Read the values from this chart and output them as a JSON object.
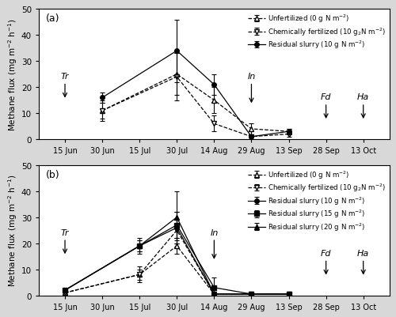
{
  "panel_a": {
    "x_labels": [
      "15 Jun",
      "30 Jun",
      "15 Jul",
      "30 Jul",
      "14 Aug",
      "29 Aug",
      "13 Sep",
      "28 Sep",
      "13 Oct"
    ],
    "x_ticks": [
      0,
      1,
      2,
      3,
      4,
      5,
      6,
      7,
      8
    ],
    "series": [
      {
        "label": "Unfertilized (0 g N m$^{-2}$)",
        "x": [
          1,
          3,
          4,
          5,
          6
        ],
        "y": [
          11,
          25,
          15,
          4,
          3
        ],
        "yerr": [
          3,
          8,
          5,
          2,
          1
        ],
        "marker": "^",
        "linestyle": "--",
        "fillstyle": "none",
        "zorder": 2
      },
      {
        "label": "Chemically fertilized (10 g$_2$N m$^{-2}$)",
        "x": [
          1,
          3,
          4,
          5,
          6
        ],
        "y": [
          11,
          24,
          6,
          1,
          2
        ],
        "yerr": [
          4,
          9,
          3,
          1,
          1
        ],
        "marker": "v",
        "linestyle": "--",
        "fillstyle": "none",
        "zorder": 2
      },
      {
        "label": "Residual slurry (10 g N m$^{-2}$)",
        "x": [
          1,
          3,
          4,
          5,
          6
        ],
        "y": [
          16,
          34,
          21,
          1,
          3
        ],
        "yerr": [
          2,
          12,
          4,
          1,
          1
        ],
        "marker": "o",
        "linestyle": "-",
        "fillstyle": "full",
        "zorder": 3
      }
    ],
    "arrows": [
      {
        "label": "Tr",
        "x": 0.0,
        "ytop": 22,
        "ybot": 15
      },
      {
        "label": "In",
        "x": 5.0,
        "ytop": 22,
        "ybot": 13
      },
      {
        "label": "Fd",
        "x": 7.0,
        "ytop": 14,
        "ybot": 7
      },
      {
        "label": "Ha",
        "x": 8.0,
        "ytop": 14,
        "ybot": 7
      }
    ],
    "ylim": [
      0,
      50
    ],
    "yticks": [
      0,
      10,
      20,
      30,
      40,
      50
    ],
    "panel_label": "(a)"
  },
  "panel_b": {
    "x_labels": [
      "15 Jun",
      "30 Jun",
      "15 Jul",
      "30 Jul",
      "14 Aug",
      "29 Aug",
      "13 Sep",
      "28 Sep",
      "13 Oct"
    ],
    "x_ticks": [
      0,
      1,
      2,
      3,
      4,
      5,
      6,
      7,
      8
    ],
    "series": [
      {
        "label": "Unfertilized (0 g N m$^{-2}$)",
        "x": [
          0,
          2,
          3,
          4,
          5,
          6
        ],
        "y": [
          1,
          8,
          19,
          0.5,
          0.5,
          0.5
        ],
        "yerr": [
          0.5,
          2,
          3,
          0.3,
          0.3,
          0.3
        ],
        "marker": "^",
        "linestyle": "--",
        "fillstyle": "none",
        "zorder": 2
      },
      {
        "label": "Chemically fertilized (10 g$_2$N m$^{-2}$)",
        "x": [
          0,
          2,
          3,
          4,
          5,
          6
        ],
        "y": [
          1,
          8,
          25,
          0.5,
          0.5,
          0.5
        ],
        "yerr": [
          0.5,
          3,
          4,
          0.3,
          0.3,
          0.3
        ],
        "marker": "v",
        "linestyle": "--",
        "fillstyle": "none",
        "zorder": 2
      },
      {
        "label": "Residual slurry (10 g N m$^{-2}$)",
        "x": [
          0,
          2,
          3,
          4,
          5,
          6
        ],
        "y": [
          2,
          19,
          26,
          0.5,
          0.5,
          0.5
        ],
        "yerr": [
          0.5,
          3,
          6,
          0.3,
          0.3,
          0.3
        ],
        "marker": "o",
        "linestyle": "-",
        "fillstyle": "full",
        "zorder": 3
      },
      {
        "label": "Residual slurry (15 g N m$^{-2}$)",
        "x": [
          0,
          2,
          3,
          4,
          5,
          6
        ],
        "y": [
          2,
          19,
          27,
          3,
          0.5,
          0.5
        ],
        "yerr": [
          0.5,
          2,
          5,
          4,
          0.3,
          0.3
        ],
        "marker": "s",
        "linestyle": "-",
        "fillstyle": "full",
        "zorder": 3
      },
      {
        "label": "Residual slurry (20 g N m$^{-2}$)",
        "x": [
          0,
          2,
          3,
          4,
          5,
          6
        ],
        "y": [
          2,
          19,
          30,
          0.5,
          0.5,
          0.5
        ],
        "yerr": [
          0.5,
          2,
          10,
          0.3,
          0.3,
          0.3
        ],
        "marker": "^",
        "linestyle": "-",
        "fillstyle": "full",
        "zorder": 3
      }
    ],
    "arrows": [
      {
        "label": "Tr",
        "x": 0.0,
        "ytop": 22,
        "ybot": 15
      },
      {
        "label": "In",
        "x": 4.0,
        "ytop": 22,
        "ybot": 13
      },
      {
        "label": "Fd",
        "x": 7.0,
        "ytop": 14,
        "ybot": 7
      },
      {
        "label": "Ha",
        "x": 8.0,
        "ytop": 14,
        "ybot": 7
      }
    ],
    "ylim": [
      0,
      50
    ],
    "yticks": [
      0,
      10,
      20,
      30,
      40,
      50
    ],
    "panel_label": "(b)"
  },
  "ylabel": "Methane flux (mg m$^{-2}$ h$^{-1}$)",
  "fig_facecolor": "#d8d8d8",
  "axes_facecolor": "#ffffff",
  "figsize": [
    5.0,
    4.02
  ],
  "dpi": 100
}
